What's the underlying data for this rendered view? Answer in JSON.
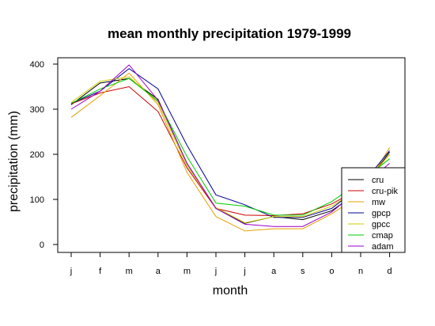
{
  "chart_data": {
    "type": "line",
    "title": "mean monthly precipitation 1979-1999",
    "xlabel": "month",
    "ylabel": "precipitation (mm)",
    "categories": [
      "j",
      "f",
      "m",
      "a",
      "m",
      "j",
      "j",
      "a",
      "s",
      "o",
      "n",
      "d"
    ],
    "yticks": [
      0,
      100,
      200,
      300,
      400
    ],
    "ylim": [
      -10,
      415
    ],
    "grid": false,
    "legend_position": "bottom-right",
    "series": [
      {
        "name": "cru",
        "color": "#000000",
        "values": [
          310,
          358,
          368,
          322,
          180,
          80,
          47,
          62,
          55,
          75,
          120,
          205
        ]
      },
      {
        "name": "cru-pik",
        "color": "#cc0000",
        "values": [
          312,
          336,
          350,
          295,
          170,
          80,
          65,
          64,
          68,
          90,
          125,
          200
        ]
      },
      {
        "name": "mw",
        "color": "#e6a000",
        "values": [
          282,
          330,
          380,
          310,
          160,
          62,
          30,
          35,
          35,
          68,
          110,
          215
        ]
      },
      {
        "name": "gpcp",
        "color": "#000099",
        "values": [
          313,
          340,
          390,
          345,
          220,
          110,
          88,
          60,
          60,
          80,
          130,
          208
        ]
      },
      {
        "name": "gpcc",
        "color": "#cccc00",
        "values": [
          315,
          362,
          372,
          315,
          175,
          82,
          48,
          62,
          62,
          85,
          125,
          200
        ]
      },
      {
        "name": "cmap",
        "color": "#00cc00",
        "values": [
          313,
          345,
          368,
          318,
          195,
          92,
          85,
          65,
          65,
          95,
          140,
          190
        ]
      },
      {
        "name": "adam",
        "color": "#9900cc",
        "values": [
          300,
          340,
          398,
          320,
          180,
          80,
          45,
          40,
          40,
          72,
          125,
          180
        ]
      }
    ]
  }
}
